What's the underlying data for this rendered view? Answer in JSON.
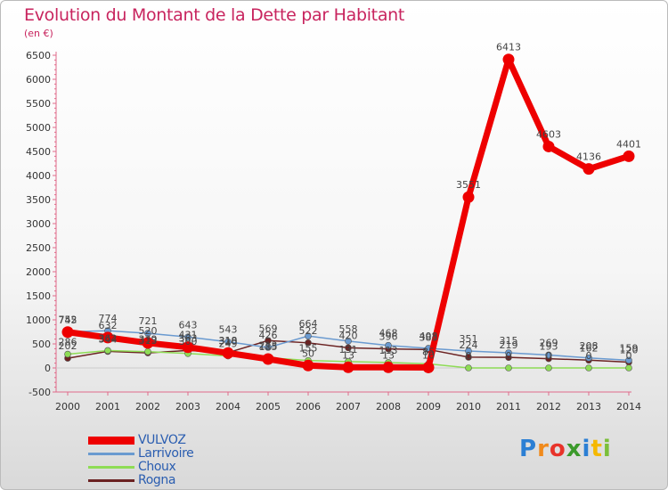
{
  "chart_data": {
    "type": "line",
    "title": "Evolution du Montant de la Dette par Habitant",
    "unit_label": "(en €)",
    "x": [
      "2000",
      "2001",
      "2002",
      "2003",
      "2004",
      "2005",
      "2006",
      "2007",
      "2008",
      "2009",
      "2010",
      "2011",
      "2012",
      "2013",
      "2014"
    ],
    "ylim": [
      -500,
      6500
    ],
    "y_ticks": [
      -500,
      0,
      500,
      1000,
      1500,
      2000,
      2500,
      3000,
      3500,
      4000,
      4500,
      5000,
      5500,
      6000,
      6500
    ],
    "grid": false,
    "legend_position": "bottom-left",
    "series": [
      {
        "name": "VULVOZ",
        "color": "#ee0000",
        "values": [
          745,
          632,
          520,
          431,
          310,
          185,
          50,
          13,
          13,
          10,
          3551,
          6413,
          4603,
          4136,
          4401
        ]
      },
      {
        "name": "Larrivoire",
        "color": "#6a9ad0",
        "values": [
          752,
          774,
          721,
          643,
          543,
          426,
          664,
          558,
          468,
          408,
          351,
          315,
          269,
          208,
          159
        ]
      },
      {
        "name": "Choux",
        "color": "#8edc55",
        "values": [
          286,
          362,
          339,
          300,
          249,
          213,
          155,
          131,
          113,
          85,
          0,
          0,
          0,
          0,
          0
        ]
      },
      {
        "name": "Rogna",
        "color": "#6b2222",
        "values": [
          202,
          344,
          313,
          363,
          318,
          569,
          522,
          420,
          396,
          383,
          224,
          219,
          193,
          162,
          120
        ]
      }
    ],
    "point_labels": [
      {
        "series": "VULVOZ",
        "labels": [
          "745",
          "632",
          "520",
          "431",
          "310",
          "185",
          "50",
          "13",
          "13",
          "10",
          "3551",
          "6413",
          "4603",
          "4136",
          "4401"
        ]
      },
      {
        "series": "Larrivoire",
        "labels": [
          "752",
          "774",
          "721",
          "643",
          "543",
          "426",
          "664",
          "558",
          "468",
          "408",
          "351",
          "315",
          "269",
          "208",
          "159"
        ]
      },
      {
        "series": "Choux",
        "labels": [
          "286",
          "362",
          "339",
          "300",
          "249",
          "213",
          "155",
          "131",
          "113",
          "85",
          "0",
          "0",
          "0",
          "0",
          "0"
        ]
      },
      {
        "series": "Rogna",
        "labels": [
          "202",
          "344",
          "313",
          "363",
          "318",
          "569",
          "522",
          "420",
          "396",
          "383",
          "224",
          "219",
          "193",
          "162",
          "120"
        ]
      }
    ]
  },
  "logo": {
    "text": "Proxiti",
    "letters": [
      "P",
      "r",
      "o",
      "x",
      "i",
      "t",
      "i"
    ],
    "letter_colors": [
      "#2b7fd4",
      "#f08a1c",
      "#e8332a",
      "#3b9a2b",
      "#2b7fd4",
      "#f5b800",
      "#7bbf3a"
    ]
  }
}
